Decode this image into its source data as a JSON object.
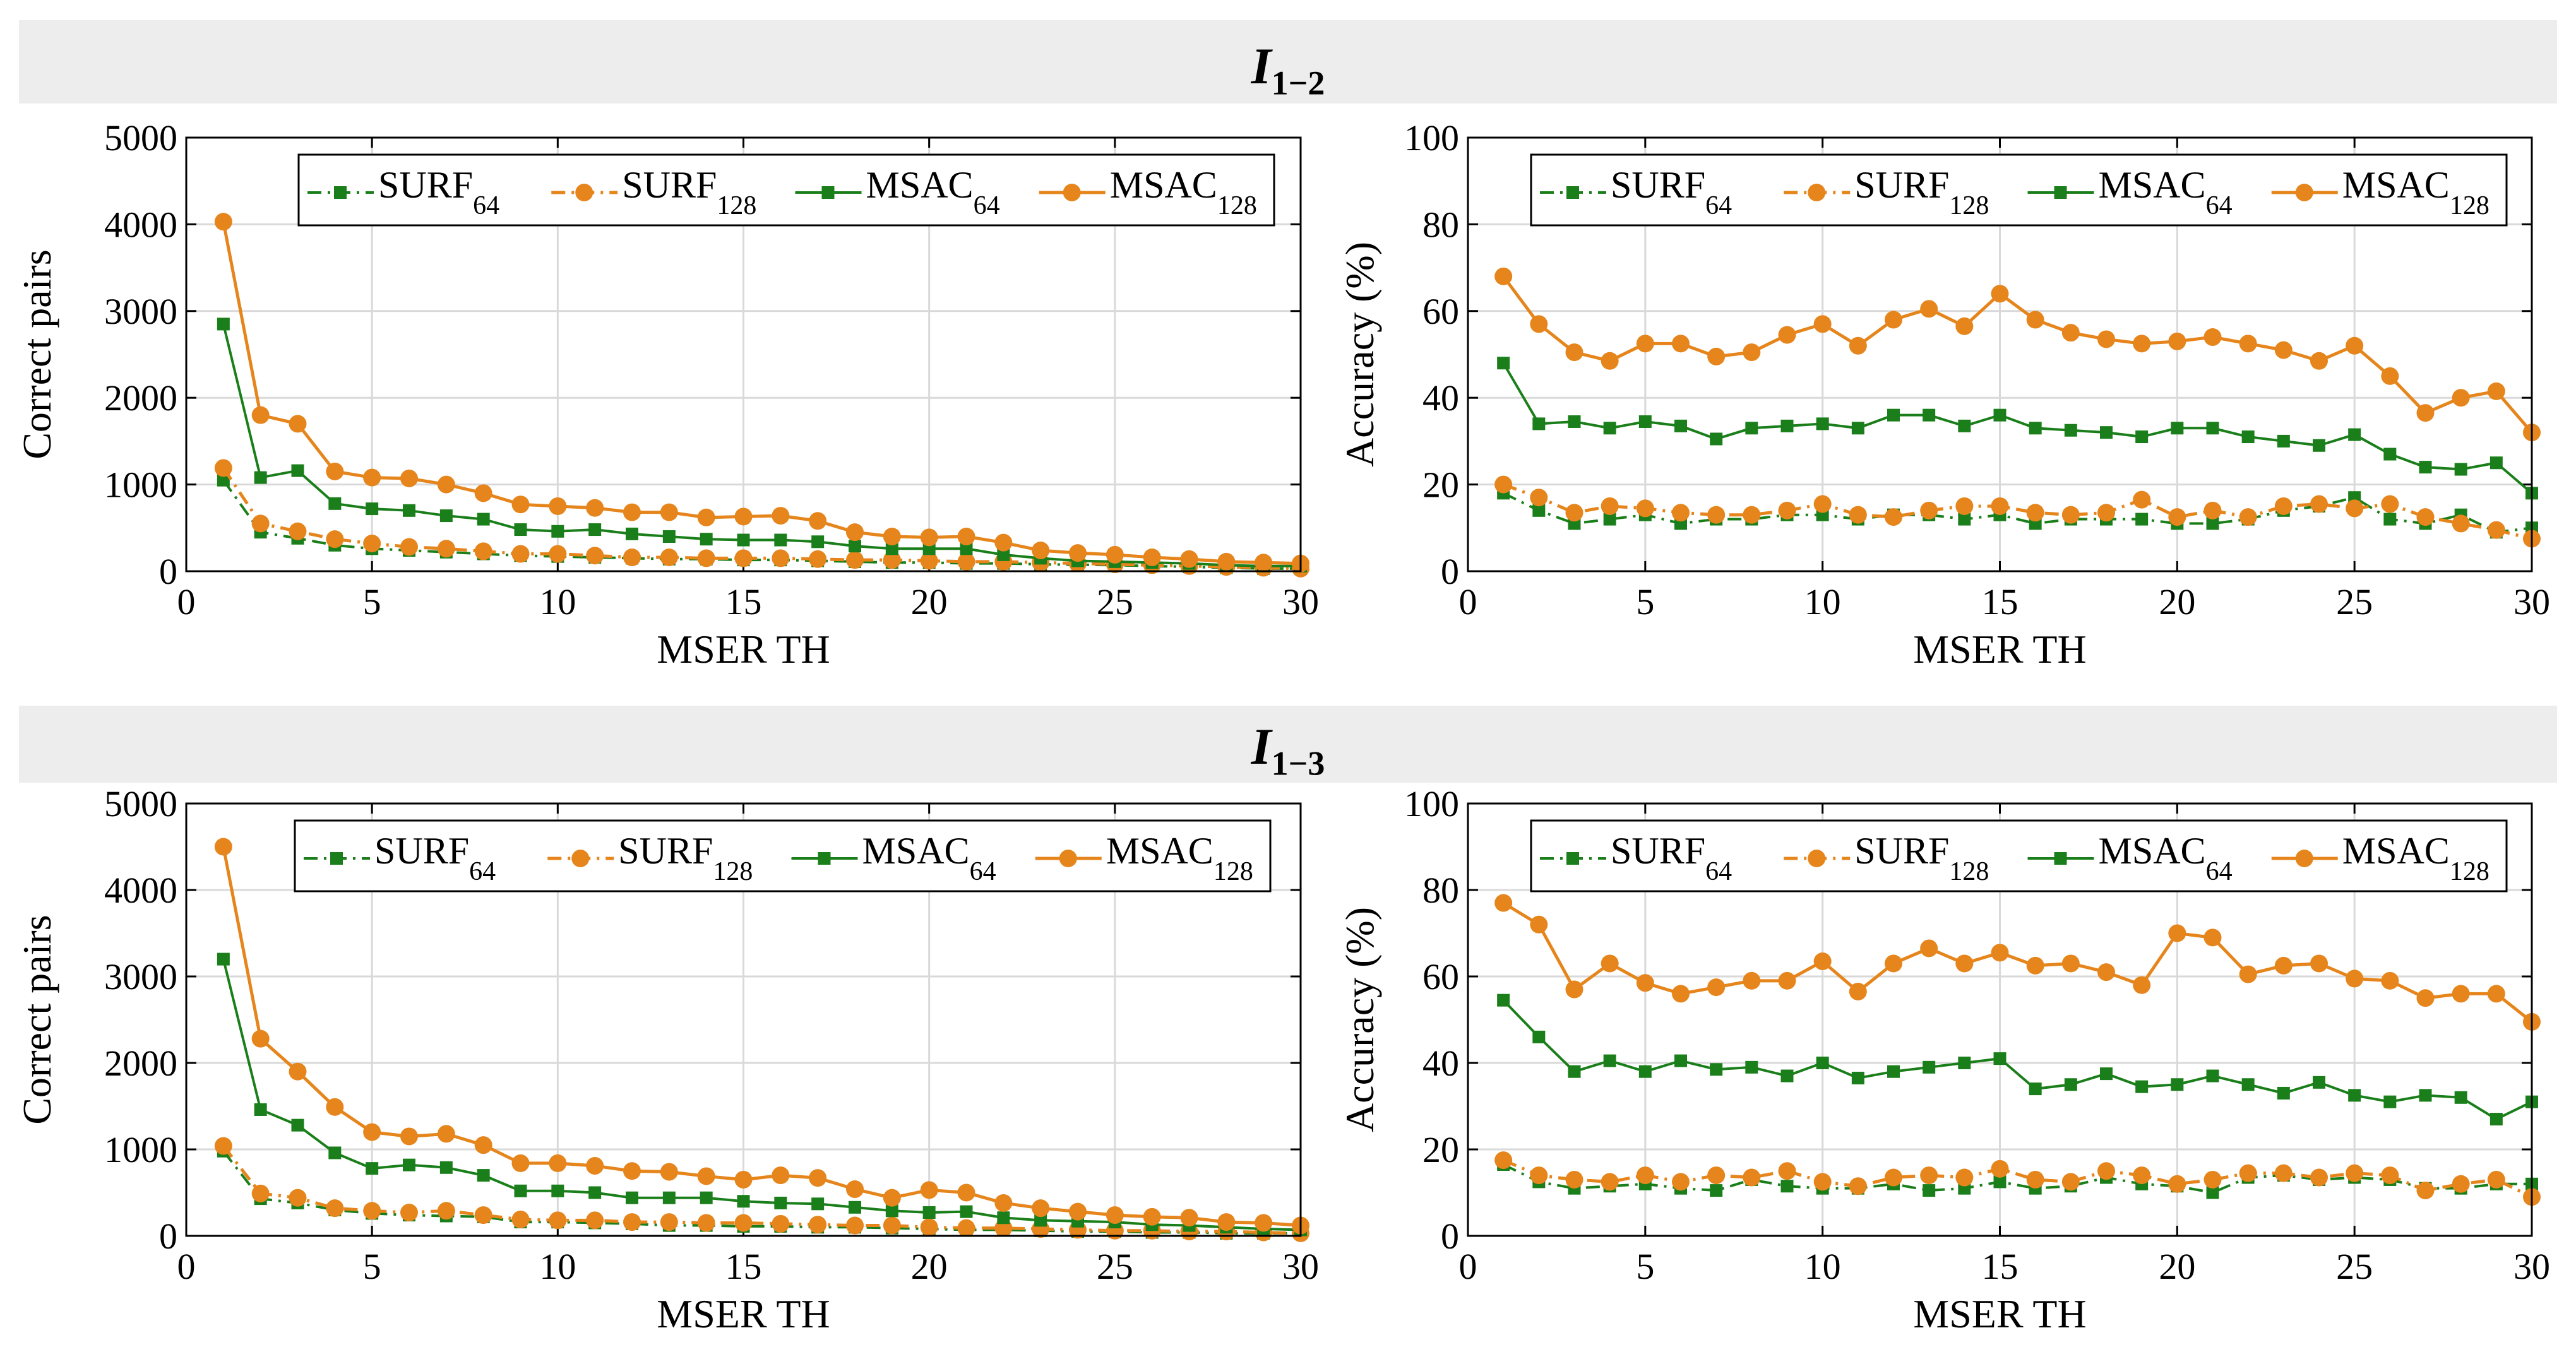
{
  "sections": [
    {
      "title": "I",
      "title_sub": "1−2"
    },
    {
      "title": "I",
      "title_sub": "1−3"
    }
  ],
  "colors": {
    "green": "#1a7f1a",
    "orange": "#e5851c",
    "grid": "#d9d9d9"
  },
  "chart_data": [
    {
      "type": "line",
      "section": "I 1−2",
      "xlabel": "MSER TH",
      "ylabel": "Correct pairs",
      "xlim": [
        0,
        30
      ],
      "ylim": [
        0,
        5000
      ],
      "xticks": [
        0,
        5,
        10,
        15,
        20,
        25,
        30
      ],
      "yticks": [
        0,
        1000,
        2000,
        3000,
        4000,
        5000
      ],
      "grid": true,
      "legend_position": "top",
      "x": [
        1,
        2,
        3,
        4,
        5,
        6,
        7,
        8,
        9,
        10,
        11,
        12,
        13,
        14,
        15,
        16,
        17,
        18,
        19,
        20,
        21,
        22,
        23,
        24,
        25,
        26,
        27,
        28,
        29,
        30
      ],
      "series": [
        {
          "name": "SURF",
          "sub": "64",
          "style": "dashdot-square-green",
          "values": [
            1050,
            450,
            380,
            300,
            260,
            240,
            220,
            200,
            180,
            170,
            160,
            150,
            140,
            140,
            130,
            130,
            120,
            110,
            100,
            100,
            90,
            90,
            80,
            75,
            70,
            60,
            50,
            40,
            30,
            30
          ]
        },
        {
          "name": "SURF",
          "sub": "128",
          "style": "dashdot-circle-orange",
          "values": [
            1190,
            550,
            460,
            370,
            320,
            280,
            260,
            230,
            200,
            200,
            180,
            160,
            160,
            150,
            150,
            150,
            140,
            130,
            130,
            120,
            110,
            110,
            100,
            90,
            80,
            70,
            60,
            50,
            40,
            30
          ]
        },
        {
          "name": "MSAC",
          "sub": "64",
          "style": "solid-square-green",
          "values": [
            2850,
            1080,
            1160,
            780,
            720,
            700,
            640,
            600,
            480,
            460,
            480,
            430,
            400,
            370,
            360,
            360,
            340,
            290,
            260,
            260,
            260,
            190,
            150,
            120,
            110,
            100,
            90,
            70,
            60,
            60
          ]
        },
        {
          "name": "MSAC",
          "sub": "128",
          "style": "solid-circle-orange",
          "values": [
            4030,
            1800,
            1700,
            1150,
            1080,
            1070,
            1000,
            900,
            770,
            750,
            730,
            680,
            680,
            620,
            630,
            640,
            580,
            450,
            400,
            390,
            400,
            330,
            240,
            210,
            190,
            160,
            140,
            110,
            100,
            90
          ]
        }
      ]
    },
    {
      "type": "line",
      "section": "I 1−2",
      "xlabel": "MSER TH",
      "ylabel": "Accuracy (%)",
      "xlim": [
        0,
        30
      ],
      "ylim": [
        0,
        100
      ],
      "xticks": [
        0,
        5,
        10,
        15,
        20,
        25,
        30
      ],
      "yticks": [
        0,
        20,
        40,
        60,
        80,
        100
      ],
      "grid": true,
      "legend_position": "top",
      "x": [
        1,
        2,
        3,
        4,
        5,
        6,
        7,
        8,
        9,
        10,
        11,
        12,
        13,
        14,
        15,
        16,
        17,
        18,
        19,
        20,
        21,
        22,
        23,
        24,
        25,
        26,
        27,
        28,
        29,
        30
      ],
      "series": [
        {
          "name": "SURF",
          "sub": "64",
          "style": "dashdot-square-green",
          "values": [
            18,
            14,
            11,
            12,
            13,
            11,
            12,
            12,
            13,
            13,
            12,
            13,
            13,
            12,
            13,
            11,
            12,
            12,
            12,
            11,
            11,
            12,
            14,
            15,
            17,
            12,
            11,
            13,
            9,
            10
          ]
        },
        {
          "name": "SURF",
          "sub": "128",
          "style": "dashdot-circle-orange",
          "values": [
            20,
            17,
            13.5,
            15,
            14.5,
            13.5,
            13,
            13,
            14,
            15.5,
            13,
            12.5,
            14,
            15,
            15,
            13.5,
            13,
            13.5,
            16.5,
            12.5,
            14,
            12.5,
            15,
            15.5,
            14.5,
            15.5,
            12.5,
            11,
            9.5,
            7.5
          ]
        },
        {
          "name": "MSAC",
          "sub": "64",
          "style": "solid-square-green",
          "values": [
            48,
            34,
            34.5,
            33,
            34.5,
            33.5,
            30.5,
            33,
            33.5,
            34,
            33,
            36,
            36,
            33.5,
            36,
            33,
            32.5,
            32,
            31,
            33,
            33,
            31,
            30,
            29,
            31.5,
            27,
            24,
            23.5,
            25,
            18
          ]
        },
        {
          "name": "MSAC",
          "sub": "128",
          "style": "solid-circle-orange",
          "values": [
            68,
            57,
            50.5,
            48.5,
            52.5,
            52.5,
            49.5,
            50.5,
            54.5,
            57,
            52,
            58,
            60.5,
            56.5,
            64,
            58,
            55,
            53.5,
            52.5,
            53,
            54,
            52.5,
            51,
            48.5,
            52,
            45,
            36.5,
            40,
            41.5,
            32
          ]
        }
      ]
    },
    {
      "type": "line",
      "section": "I 1−3",
      "xlabel": "MSER TH",
      "ylabel": "Correct pairs",
      "xlim": [
        0,
        30
      ],
      "ylim": [
        0,
        5000
      ],
      "xticks": [
        0,
        5,
        10,
        15,
        20,
        25,
        30
      ],
      "yticks": [
        0,
        1000,
        2000,
        3000,
        4000,
        5000
      ],
      "grid": true,
      "legend_position": "top",
      "x": [
        1,
        2,
        3,
        4,
        5,
        6,
        7,
        8,
        9,
        10,
        11,
        12,
        13,
        14,
        15,
        16,
        17,
        18,
        19,
        20,
        21,
        22,
        23,
        24,
        25,
        26,
        27,
        28,
        29,
        30
      ],
      "series": [
        {
          "name": "SURF",
          "sub": "64",
          "style": "dashdot-square-green",
          "values": [
            980,
            430,
            380,
            300,
            260,
            240,
            230,
            220,
            160,
            160,
            150,
            140,
            120,
            120,
            110,
            110,
            100,
            100,
            90,
            80,
            70,
            70,
            60,
            50,
            50,
            40,
            40,
            30,
            30,
            30
          ]
        },
        {
          "name": "SURF",
          "sub": "128",
          "style": "dashdot-circle-orange",
          "values": [
            1040,
            490,
            440,
            320,
            290,
            270,
            290,
            240,
            190,
            180,
            180,
            160,
            160,
            150,
            150,
            140,
            130,
            120,
            120,
            100,
            90,
            90,
            80,
            70,
            60,
            60,
            50,
            50,
            40,
            30
          ]
        },
        {
          "name": "MSAC",
          "sub": "64",
          "style": "solid-square-green",
          "values": [
            3200,
            1460,
            1280,
            960,
            780,
            820,
            790,
            700,
            520,
            520,
            500,
            440,
            440,
            440,
            400,
            380,
            370,
            330,
            290,
            270,
            280,
            210,
            180,
            170,
            160,
            130,
            120,
            100,
            80,
            70
          ]
        },
        {
          "name": "MSAC",
          "sub": "128",
          "style": "solid-circle-orange",
          "values": [
            4500,
            2280,
            1900,
            1490,
            1200,
            1150,
            1180,
            1050,
            840,
            840,
            810,
            750,
            740,
            690,
            650,
            700,
            670,
            540,
            440,
            530,
            500,
            380,
            320,
            280,
            240,
            220,
            210,
            160,
            150,
            120
          ]
        }
      ]
    },
    {
      "type": "line",
      "section": "I 1−3",
      "xlabel": "MSER TH",
      "ylabel": "Accuracy (%)",
      "xlim": [
        0,
        30
      ],
      "ylim": [
        0,
        100
      ],
      "xticks": [
        0,
        5,
        10,
        15,
        20,
        25,
        30
      ],
      "yticks": [
        0,
        20,
        40,
        60,
        80,
        100
      ],
      "grid": true,
      "legend_position": "top",
      "x": [
        1,
        2,
        3,
        4,
        5,
        6,
        7,
        8,
        9,
        10,
        11,
        12,
        13,
        14,
        15,
        16,
        17,
        18,
        19,
        20,
        21,
        22,
        23,
        24,
        25,
        26,
        27,
        28,
        29,
        30
      ],
      "series": [
        {
          "name": "SURF",
          "sub": "64",
          "style": "dashdot-square-green",
          "values": [
            16.5,
            12.5,
            11,
            11.5,
            12,
            11,
            10.5,
            13,
            11.5,
            11,
            11,
            12,
            10.5,
            11,
            12.5,
            11,
            11.5,
            13.5,
            12,
            11.5,
            10,
            13.5,
            14,
            13,
            13.5,
            13,
            11,
            11,
            12,
            12
          ]
        },
        {
          "name": "SURF",
          "sub": "128",
          "style": "dashdot-circle-orange",
          "values": [
            17.5,
            14,
            13,
            12.5,
            14,
            12.5,
            14,
            13.5,
            15,
            12.5,
            11.5,
            13.5,
            14,
            13.5,
            15.5,
            13,
            12.5,
            15,
            14,
            12,
            13,
            14.5,
            14.5,
            13.5,
            14.5,
            14,
            10.5,
            12,
            13,
            9
          ]
        },
        {
          "name": "MSAC",
          "sub": "64",
          "style": "solid-square-green",
          "values": [
            54.5,
            46,
            38,
            40.5,
            38,
            40.5,
            38.5,
            39,
            37,
            40,
            36.5,
            38,
            39,
            40,
            41,
            34,
            35,
            37.5,
            34.5,
            35,
            37,
            35,
            33,
            35.5,
            32.5,
            31,
            32.5,
            32,
            27,
            31
          ]
        },
        {
          "name": "MSAC",
          "sub": "128",
          "style": "solid-circle-orange",
          "values": [
            77,
            72,
            57,
            63,
            58.5,
            56,
            57.5,
            59,
            59,
            63.5,
            56.5,
            63,
            66.5,
            63,
            65.5,
            62.5,
            63,
            61,
            58,
            70,
            69,
            60.5,
            62.5,
            63,
            59.5,
            59,
            55,
            56,
            56,
            49.5
          ]
        }
      ]
    }
  ]
}
